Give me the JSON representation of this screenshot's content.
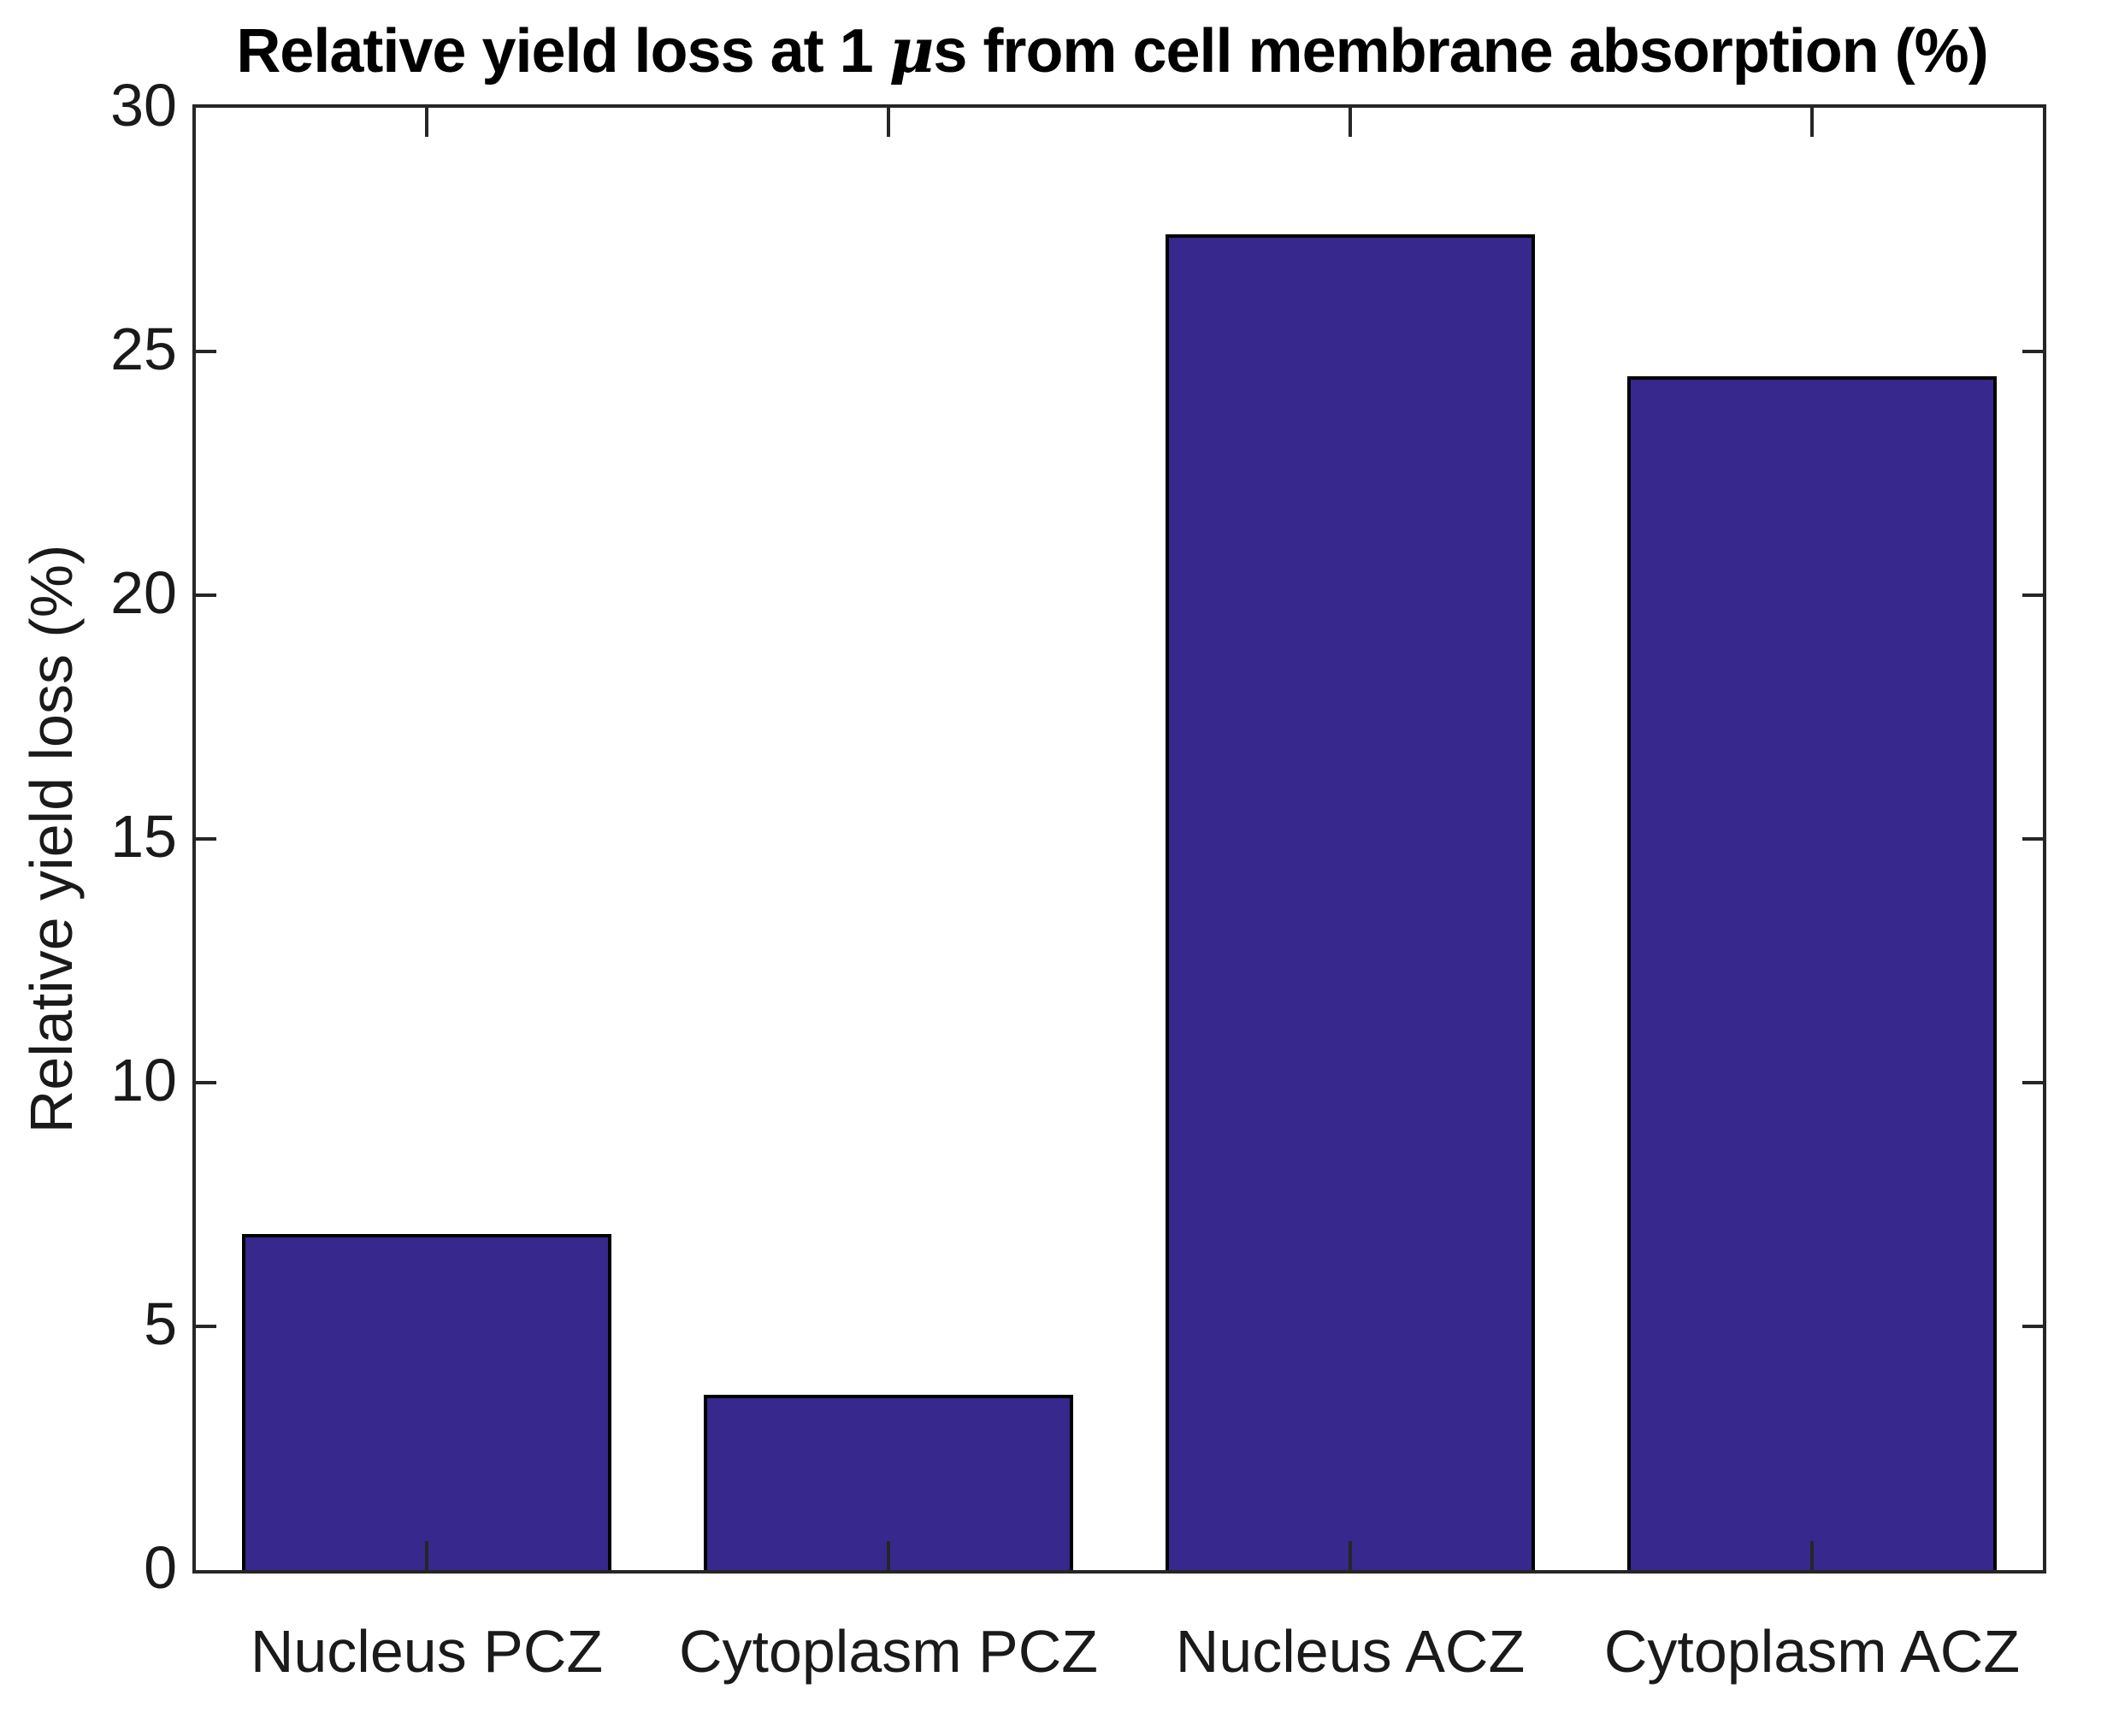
{
  "figure": {
    "title": {
      "prefix": "Relative yield loss at 1 ",
      "mu": "μ",
      "suffix": "s from cell membrane absorption (%)"
    },
    "ylabel": "Relative yield loss (%)"
  },
  "chart_data": {
    "type": "bar",
    "title": "Relative yield loss at 1 μs from cell membrane absorption (%)",
    "categories": [
      "Nucleus PCZ",
      "Cytoplasm PCZ",
      "Nucleus ACZ",
      "Cytoplasm ACZ"
    ],
    "values": [
      6.9,
      3.6,
      27.4,
      24.5
    ],
    "xlabel": "",
    "ylabel": "Relative yield loss (%)",
    "ylim": [
      0,
      30
    ],
    "yticks": [
      0,
      5,
      10,
      15,
      20,
      25,
      30
    ],
    "grid": false,
    "legend": "none",
    "bar_width_fraction": 0.8,
    "bar_color": "#36288D",
    "bar_edge_color": "#000000",
    "axis_color": "#262626",
    "background_color": "#FFFFFF"
  }
}
